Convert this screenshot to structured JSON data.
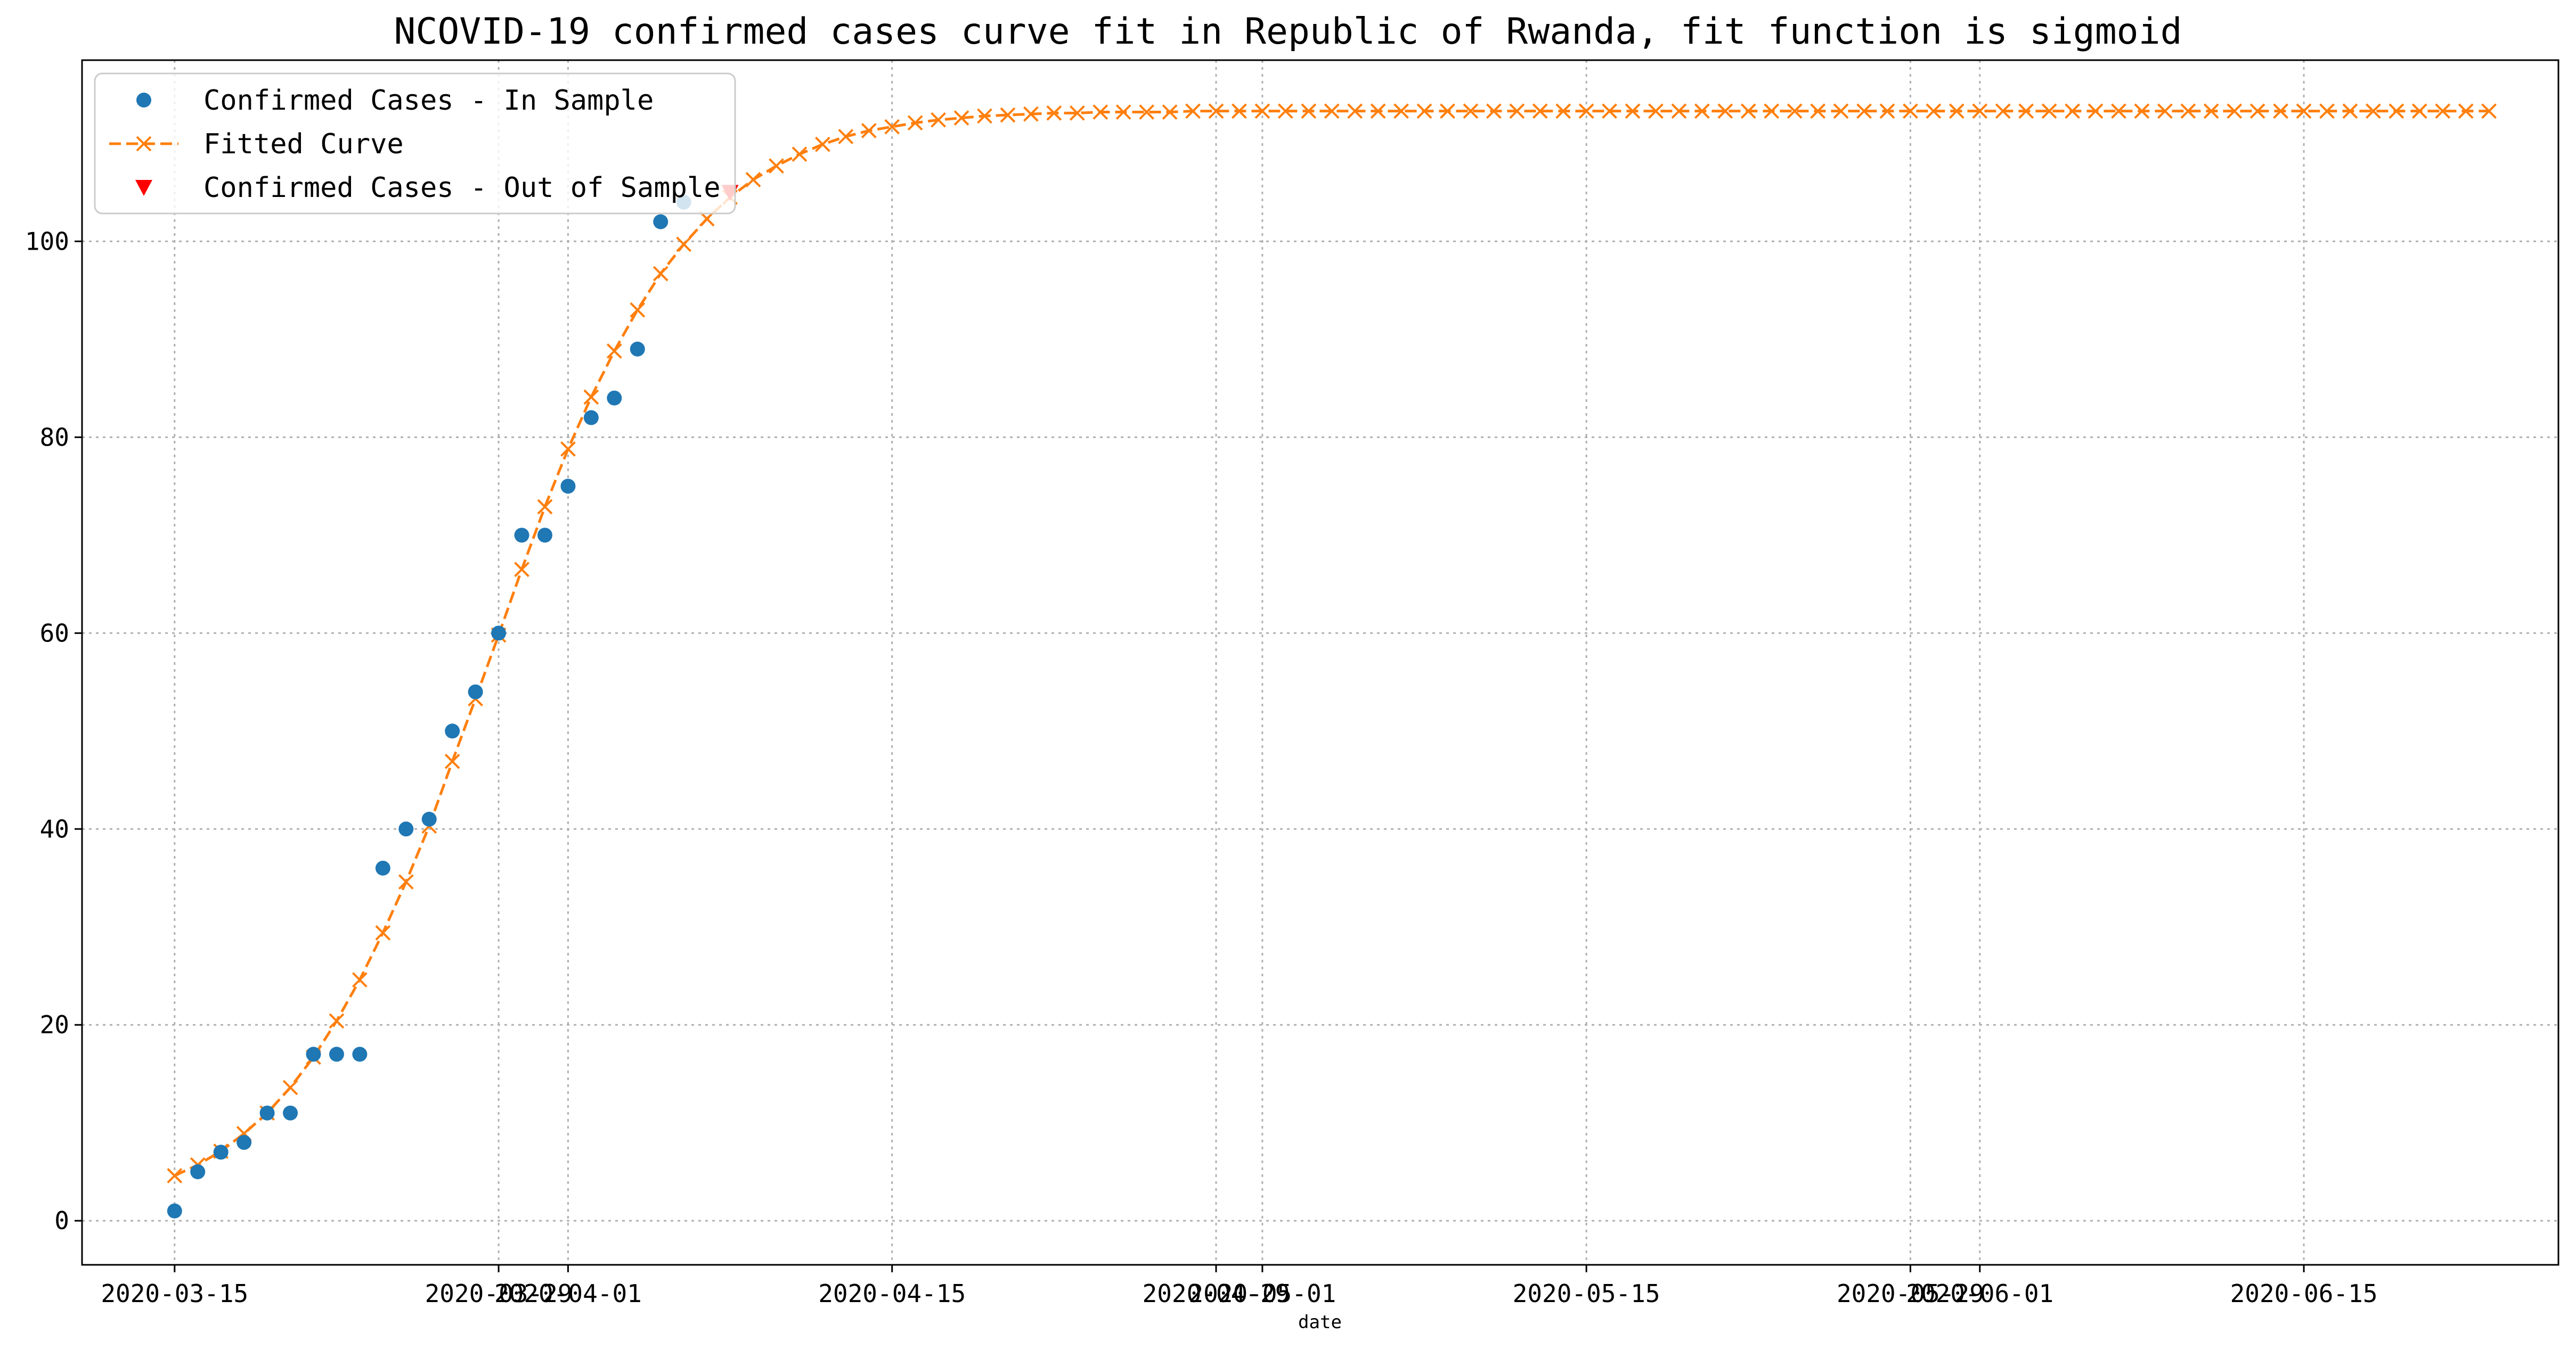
{
  "chart_data": {
    "type": "scatter",
    "title": "NCOVID-19 confirmed cases curve fit in Republic of Rwanda, fit function is sigmoid",
    "xlabel": "date",
    "ylabel": "",
    "x_is_date": true,
    "xlim": [
      "2020-03-11",
      "2020-06-26"
    ],
    "ylim": [
      -4.5,
      118.5
    ],
    "grid": true,
    "legend_position": "top-left",
    "yticks": [
      0,
      20,
      40,
      60,
      80,
      100
    ],
    "xticks": [
      {
        "date": "2020-03-15",
        "label": "2020-03-15"
      },
      {
        "date": "2020-03-29",
        "label": "2020-03-29"
      },
      {
        "date": "2020-04-01",
        "label": "2020-04-01"
      },
      {
        "date": "2020-04-15",
        "label": "2020-04-15"
      },
      {
        "date": "2020-04-29",
        "label": "2020-04-29"
      },
      {
        "date": "2020-05-01",
        "label": "2020-05-01"
      },
      {
        "date": "2020-05-15",
        "label": "2020-05-15"
      },
      {
        "date": "2020-05-29",
        "label": "2020-05-29"
      },
      {
        "date": "2020-06-01",
        "label": "2020-06-01"
      },
      {
        "date": "2020-06-15",
        "label": "2020-06-15"
      }
    ],
    "series": [
      {
        "name": "Confirmed Cases - In Sample",
        "kind": "scatter",
        "marker": "circle",
        "color": "#1f77b4",
        "start_date": "2020-03-15",
        "values": [
          1,
          5,
          7,
          8,
          11,
          11,
          17,
          17,
          17,
          36,
          40,
          41,
          50,
          54,
          60,
          70,
          70,
          75,
          82,
          84,
          89,
          102,
          104
        ]
      },
      {
        "name": "Fitted Curve",
        "kind": "line",
        "marker": "x",
        "dash": true,
        "color": "#ff7f0e",
        "start_date": "2020-03-15",
        "values": [
          4.6,
          5.7,
          7.1,
          8.9,
          11.0,
          13.6,
          16.7,
          20.4,
          24.6,
          29.4,
          34.6,
          40.3,
          46.9,
          53.3,
          59.8,
          66.5,
          72.9,
          78.8,
          84.1,
          88.8,
          93.0,
          96.7,
          99.7,
          102.3,
          104.5,
          106.3,
          107.7,
          108.9,
          109.9,
          110.7,
          111.3,
          111.7,
          112.1,
          112.4,
          112.6,
          112.8,
          112.9,
          113.0,
          113.1,
          113.1,
          113.2,
          113.2,
          113.2,
          113.2,
          113.3,
          113.3,
          113.3,
          113.3,
          113.3,
          113.3,
          113.3,
          113.3,
          113.3,
          113.3,
          113.3,
          113.3,
          113.3,
          113.3,
          113.3,
          113.3,
          113.3,
          113.3,
          113.3,
          113.3,
          113.3,
          113.3,
          113.3,
          113.3,
          113.3,
          113.3,
          113.3,
          113.3,
          113.3,
          113.3,
          113.3,
          113.3,
          113.3,
          113.3,
          113.3,
          113.3,
          113.3,
          113.3,
          113.3,
          113.3,
          113.3,
          113.3,
          113.3,
          113.3,
          113.3,
          113.3,
          113.3,
          113.3,
          113.3,
          113.3,
          113.3,
          113.3,
          113.3,
          113.3,
          113.3,
          113.3,
          113.3
        ]
      },
      {
        "name": "Confirmed Cases - Out of Sample",
        "kind": "scatter",
        "marker": "triangle-down",
        "color": "#ff0000",
        "start_date": "2020-04-08",
        "values": [
          105
        ]
      }
    ]
  }
}
